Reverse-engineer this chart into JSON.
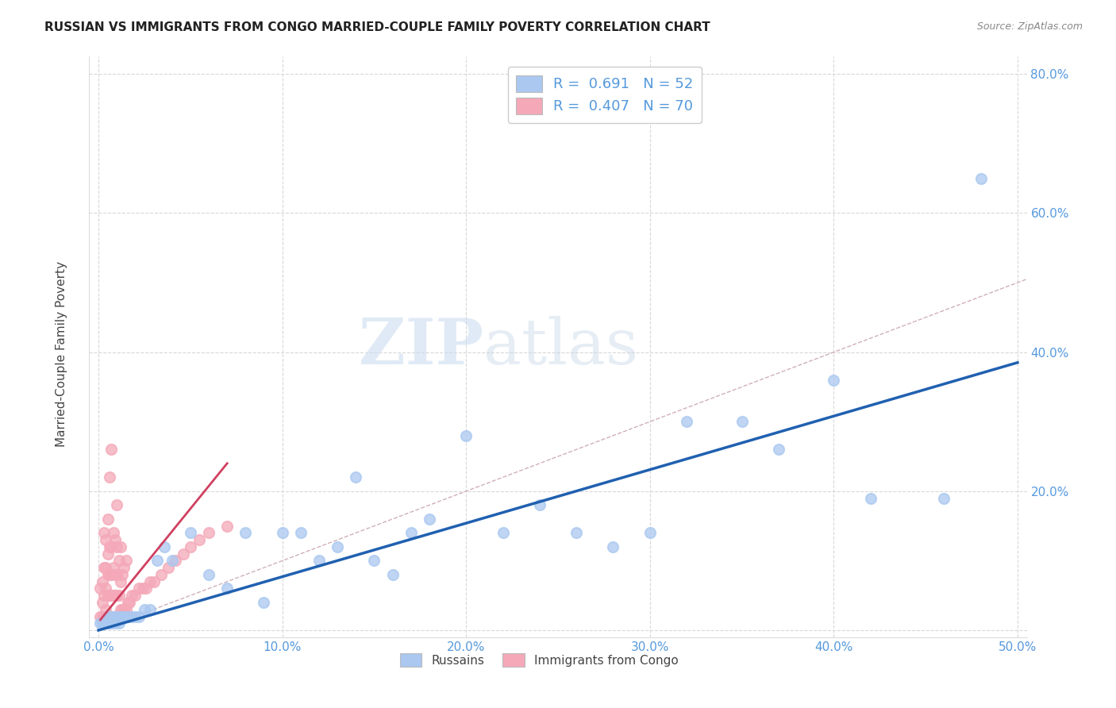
{
  "title": "RUSSIAN VS IMMIGRANTS FROM CONGO MARRIED-COUPLE FAMILY POVERTY CORRELATION CHART",
  "source": "Source: ZipAtlas.com",
  "tick_color": "#5599dd",
  "ylabel": "Married-Couple Family Poverty",
  "xlim": [
    -0.005,
    0.505
  ],
  "ylim": [
    -0.01,
    0.825
  ],
  "xticks": [
    0.0,
    0.1,
    0.2,
    0.3,
    0.4,
    0.5
  ],
  "yticks": [
    0.0,
    0.2,
    0.4,
    0.6,
    0.8
  ],
  "xtick_labels": [
    "0.0%",
    "10.0%",
    "20.0%",
    "30.0%",
    "40.0%",
    "50.0%"
  ],
  "ytick_labels": [
    "",
    "20.0%",
    "40.0%",
    "60.0%",
    "80.0%"
  ],
  "blue_R": 0.691,
  "blue_N": 52,
  "pink_R": 0.407,
  "pink_N": 70,
  "blue_color": "#aac8f0",
  "pink_color": "#f4a8b8",
  "blue_line_color": "#2060b0",
  "pink_line_color": "#d04060",
  "diagonal_color": "#d0b0b8",
  "grid_color": "#d8d8d8",
  "blue_scatter_x": [
    0.001,
    0.002,
    0.003,
    0.004,
    0.005,
    0.005,
    0.006,
    0.006,
    0.007,
    0.008,
    0.009,
    0.01,
    0.011,
    0.012,
    0.013,
    0.014,
    0.016,
    0.018,
    0.02,
    0.022,
    0.025,
    0.028,
    0.032,
    0.036,
    0.04,
    0.05,
    0.06,
    0.07,
    0.08,
    0.09,
    0.1,
    0.11,
    0.12,
    0.13,
    0.14,
    0.15,
    0.16,
    0.17,
    0.18,
    0.2,
    0.22,
    0.24,
    0.26,
    0.28,
    0.3,
    0.32,
    0.35,
    0.37,
    0.4,
    0.42,
    0.46,
    0.48
  ],
  "blue_scatter_y": [
    0.01,
    0.01,
    0.01,
    0.01,
    0.01,
    0.02,
    0.01,
    0.02,
    0.01,
    0.02,
    0.01,
    0.02,
    0.01,
    0.02,
    0.02,
    0.02,
    0.02,
    0.02,
    0.02,
    0.02,
    0.03,
    0.03,
    0.1,
    0.12,
    0.1,
    0.14,
    0.08,
    0.06,
    0.14,
    0.04,
    0.14,
    0.14,
    0.1,
    0.12,
    0.22,
    0.1,
    0.08,
    0.14,
    0.16,
    0.28,
    0.14,
    0.18,
    0.14,
    0.12,
    0.14,
    0.3,
    0.3,
    0.26,
    0.36,
    0.19,
    0.19,
    0.65
  ],
  "pink_scatter_x": [
    0.001,
    0.001,
    0.002,
    0.002,
    0.002,
    0.003,
    0.003,
    0.003,
    0.003,
    0.004,
    0.004,
    0.004,
    0.004,
    0.005,
    0.005,
    0.005,
    0.005,
    0.005,
    0.006,
    0.006,
    0.006,
    0.006,
    0.006,
    0.007,
    0.007,
    0.007,
    0.007,
    0.007,
    0.008,
    0.008,
    0.008,
    0.008,
    0.009,
    0.009,
    0.009,
    0.009,
    0.01,
    0.01,
    0.01,
    0.01,
    0.01,
    0.011,
    0.011,
    0.011,
    0.012,
    0.012,
    0.012,
    0.013,
    0.013,
    0.014,
    0.014,
    0.015,
    0.015,
    0.016,
    0.017,
    0.018,
    0.02,
    0.022,
    0.024,
    0.026,
    0.028,
    0.03,
    0.034,
    0.038,
    0.042,
    0.046,
    0.05,
    0.055,
    0.06,
    0.07
  ],
  "pink_scatter_y": [
    0.02,
    0.06,
    0.02,
    0.04,
    0.07,
    0.02,
    0.05,
    0.09,
    0.14,
    0.03,
    0.06,
    0.09,
    0.13,
    0.02,
    0.05,
    0.08,
    0.11,
    0.16,
    0.02,
    0.05,
    0.08,
    0.12,
    0.22,
    0.02,
    0.05,
    0.08,
    0.12,
    0.26,
    0.02,
    0.05,
    0.09,
    0.14,
    0.02,
    0.05,
    0.08,
    0.13,
    0.02,
    0.05,
    0.08,
    0.12,
    0.18,
    0.02,
    0.05,
    0.1,
    0.03,
    0.07,
    0.12,
    0.03,
    0.08,
    0.03,
    0.09,
    0.03,
    0.1,
    0.04,
    0.04,
    0.05,
    0.05,
    0.06,
    0.06,
    0.06,
    0.07,
    0.07,
    0.08,
    0.09,
    0.1,
    0.11,
    0.12,
    0.13,
    0.14,
    0.15
  ],
  "watermark_zip": "ZIP",
  "watermark_atlas": "atlas",
  "legend_fontsize": 13,
  "title_fontsize": 11,
  "blue_line_x": [
    0.0,
    0.5
  ],
  "blue_line_y": [
    0.0,
    0.385
  ],
  "pink_line_x": [
    0.001,
    0.07
  ],
  "pink_line_y": [
    0.015,
    0.24
  ]
}
